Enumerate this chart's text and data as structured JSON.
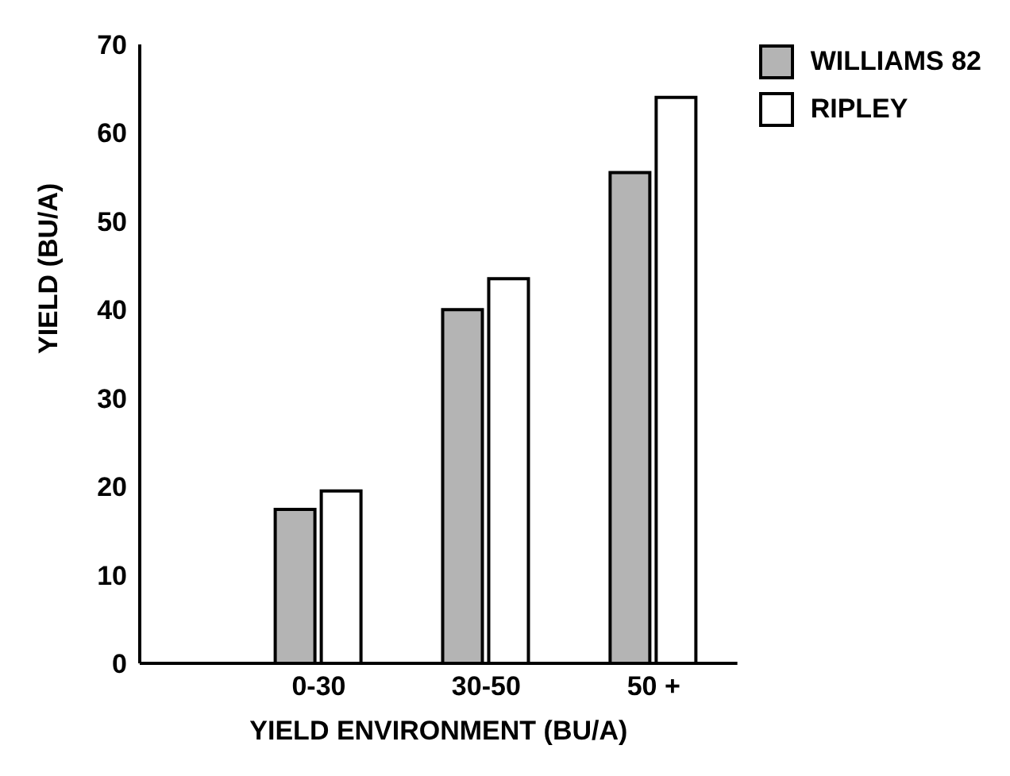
{
  "chart_data": {
    "type": "bar",
    "xlabel": "YIELD ENVIRONMENT (BU/A)",
    "ylabel": "YIELD (BU/A)",
    "categories": [
      "0-30",
      "30-50",
      "50 +"
    ],
    "series": [
      {
        "name": "WILLIAMS 82",
        "color": "#b4b4b4",
        "values": [
          17.4,
          40.0,
          55.5
        ]
      },
      {
        "name": "RIPLEY",
        "color": "#ffffff",
        "values": [
          19.5,
          43.5,
          64.0
        ]
      }
    ],
    "ylim": [
      0,
      70
    ],
    "yticks": [
      0,
      10,
      20,
      30,
      40,
      50,
      60,
      70
    ],
    "grid": false,
    "legend": "top right"
  }
}
